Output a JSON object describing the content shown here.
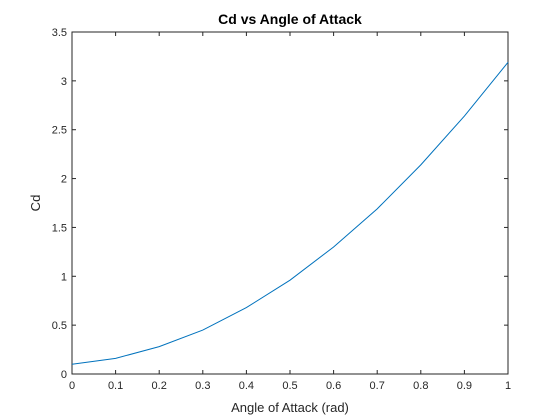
{
  "chart_data": {
    "type": "line",
    "title": "Cd vs Angle of Attack",
    "xlabel": "Angle of Attack (rad)",
    "ylabel": "Cd",
    "xlim": [
      0,
      1
    ],
    "ylim": [
      0,
      3.5
    ],
    "xticks": [
      "0",
      "0.1",
      "0.2",
      "0.3",
      "0.4",
      "0.5",
      "0.6",
      "0.7",
      "0.8",
      "0.9",
      "1"
    ],
    "yticks": [
      "0",
      "0.5",
      "1",
      "1.5",
      "2",
      "2.5",
      "3",
      "3.5"
    ],
    "grid": false,
    "series": [
      {
        "color": "#0072bd",
        "x": [
          0,
          0.1,
          0.2,
          0.3,
          0.4,
          0.5,
          0.6,
          0.7,
          0.8,
          0.9,
          1.0
        ],
        "y": [
          0.1,
          0.16,
          0.28,
          0.45,
          0.68,
          0.96,
          1.3,
          1.69,
          2.14,
          2.64,
          3.19
        ]
      }
    ]
  }
}
